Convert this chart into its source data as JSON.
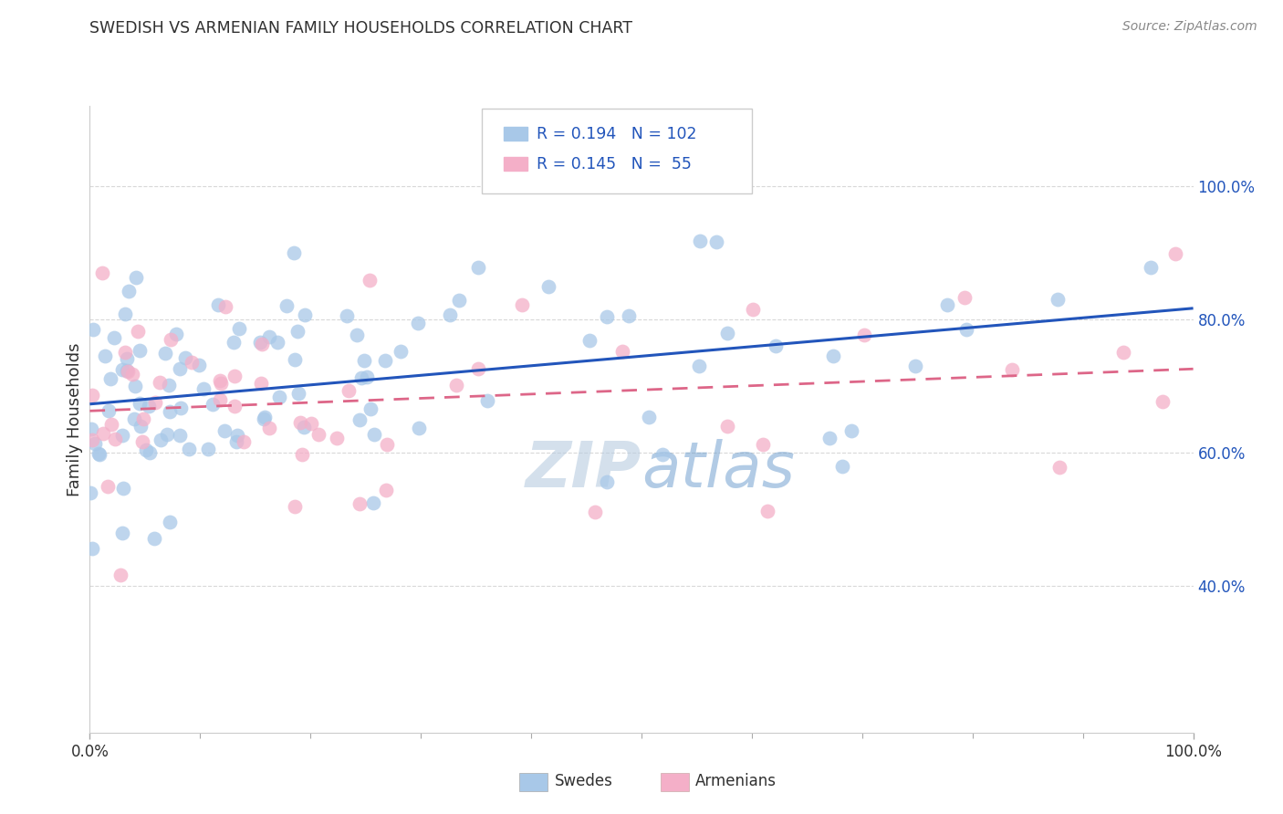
{
  "title": "SWEDISH VS ARMENIAN FAMILY HOUSEHOLDS CORRELATION CHART",
  "source": "Source: ZipAtlas.com",
  "ylabel": "Family Households",
  "swedes_R": 0.194,
  "swedes_N": 102,
  "armenians_R": 0.145,
  "armenians_N": 55,
  "swede_color": "#a8c8e8",
  "armenian_color": "#f4afc8",
  "swede_line_color": "#2255bb",
  "armenian_line_color": "#dd6688",
  "legend_text_color": "#2255bb",
  "watermark_color_zip": "#b8cce0",
  "watermark_color_atlas": "#6699cc",
  "background_color": "#ffffff",
  "grid_color": "#d8d8d8",
  "title_color": "#303030",
  "source_color": "#888888",
  "ytick_color": "#2255bb",
  "xlim": [
    0.0,
    1.0
  ],
  "ylim": [
    0.18,
    1.12
  ],
  "yticks": [
    0.4,
    0.6,
    0.8,
    1.0
  ],
  "ytick_labels": [
    "40.0%",
    "60.0%",
    "80.0%",
    "100.0%"
  ]
}
